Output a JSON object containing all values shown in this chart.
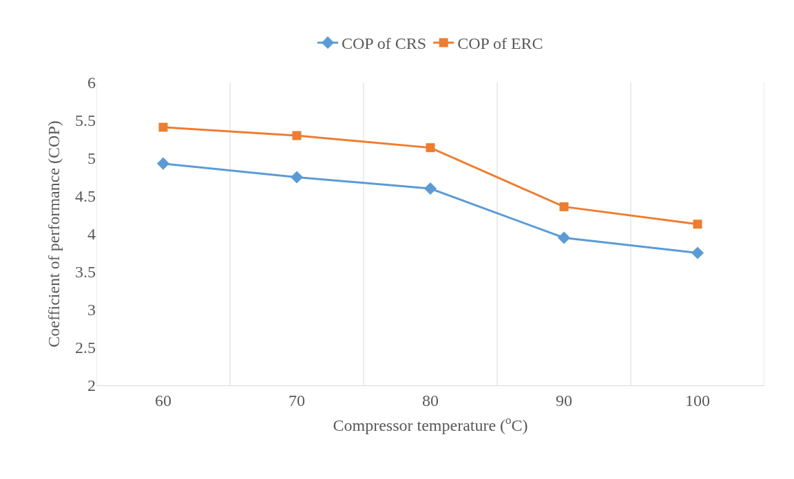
{
  "chart_data": {
    "type": "line",
    "xlabel": "Compressor temperature ($^{o}$C)",
    "ylabel": "Coefficient of performance (COP)",
    "categories": [
      "60",
      "70",
      "80",
      "90",
      "100"
    ],
    "series": [
      {
        "name": "COP of CRS",
        "color": "#5b9bd5",
        "marker": "diamond",
        "values": [
          4.93,
          4.75,
          4.6,
          3.95,
          3.75
        ]
      },
      {
        "name": "COP of ERC",
        "color": "#ed7d31",
        "marker": "square",
        "values": [
          5.41,
          5.3,
          5.14,
          4.36,
          4.13
        ]
      }
    ],
    "ylim": [
      2,
      6
    ],
    "yticks": [
      2,
      2.5,
      3,
      3.5,
      4,
      4.5,
      5,
      5.5,
      6
    ],
    "grid": "x",
    "legend": "top",
    "line_style": "solid"
  }
}
